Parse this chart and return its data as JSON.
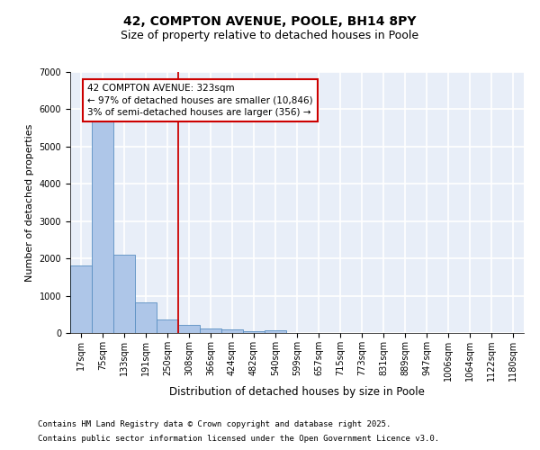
{
  "title_line1": "42, COMPTON AVENUE, POOLE, BH14 8PY",
  "title_line2": "Size of property relative to detached houses in Poole",
  "xlabel": "Distribution of detached houses by size in Poole",
  "ylabel": "Number of detached properties",
  "categories": [
    "17sqm",
    "75sqm",
    "133sqm",
    "191sqm",
    "250sqm",
    "308sqm",
    "366sqm",
    "424sqm",
    "482sqm",
    "540sqm",
    "599sqm",
    "657sqm",
    "715sqm",
    "773sqm",
    "831sqm",
    "889sqm",
    "947sqm",
    "1006sqm",
    "1064sqm",
    "1122sqm",
    "1180sqm"
  ],
  "values": [
    1800,
    5800,
    2100,
    820,
    370,
    210,
    130,
    85,
    55,
    75,
    0,
    0,
    0,
    0,
    0,
    0,
    0,
    0,
    0,
    0,
    0
  ],
  "bar_color": "#aec6e8",
  "bar_edge_color": "#5a8fc2",
  "ylim": [
    0,
    7000
  ],
  "yticks": [
    0,
    1000,
    2000,
    3000,
    4000,
    5000,
    6000,
    7000
  ],
  "vline_color": "#cc0000",
  "annotation_text": "42 COMPTON AVENUE: 323sqm\n← 97% of detached houses are smaller (10,846)\n3% of semi-detached houses are larger (356) →",
  "annotation_box_color": "#cc0000",
  "background_color": "#e8eef8",
  "grid_color": "#ffffff",
  "footer_line1": "Contains HM Land Registry data © Crown copyright and database right 2025.",
  "footer_line2": "Contains public sector information licensed under the Open Government Licence v3.0.",
  "title_fontsize": 10,
  "subtitle_fontsize": 9,
  "tick_fontsize": 7,
  "ylabel_fontsize": 8,
  "xlabel_fontsize": 8.5,
  "annotation_fontsize": 7.5,
  "footer_fontsize": 6.5
}
